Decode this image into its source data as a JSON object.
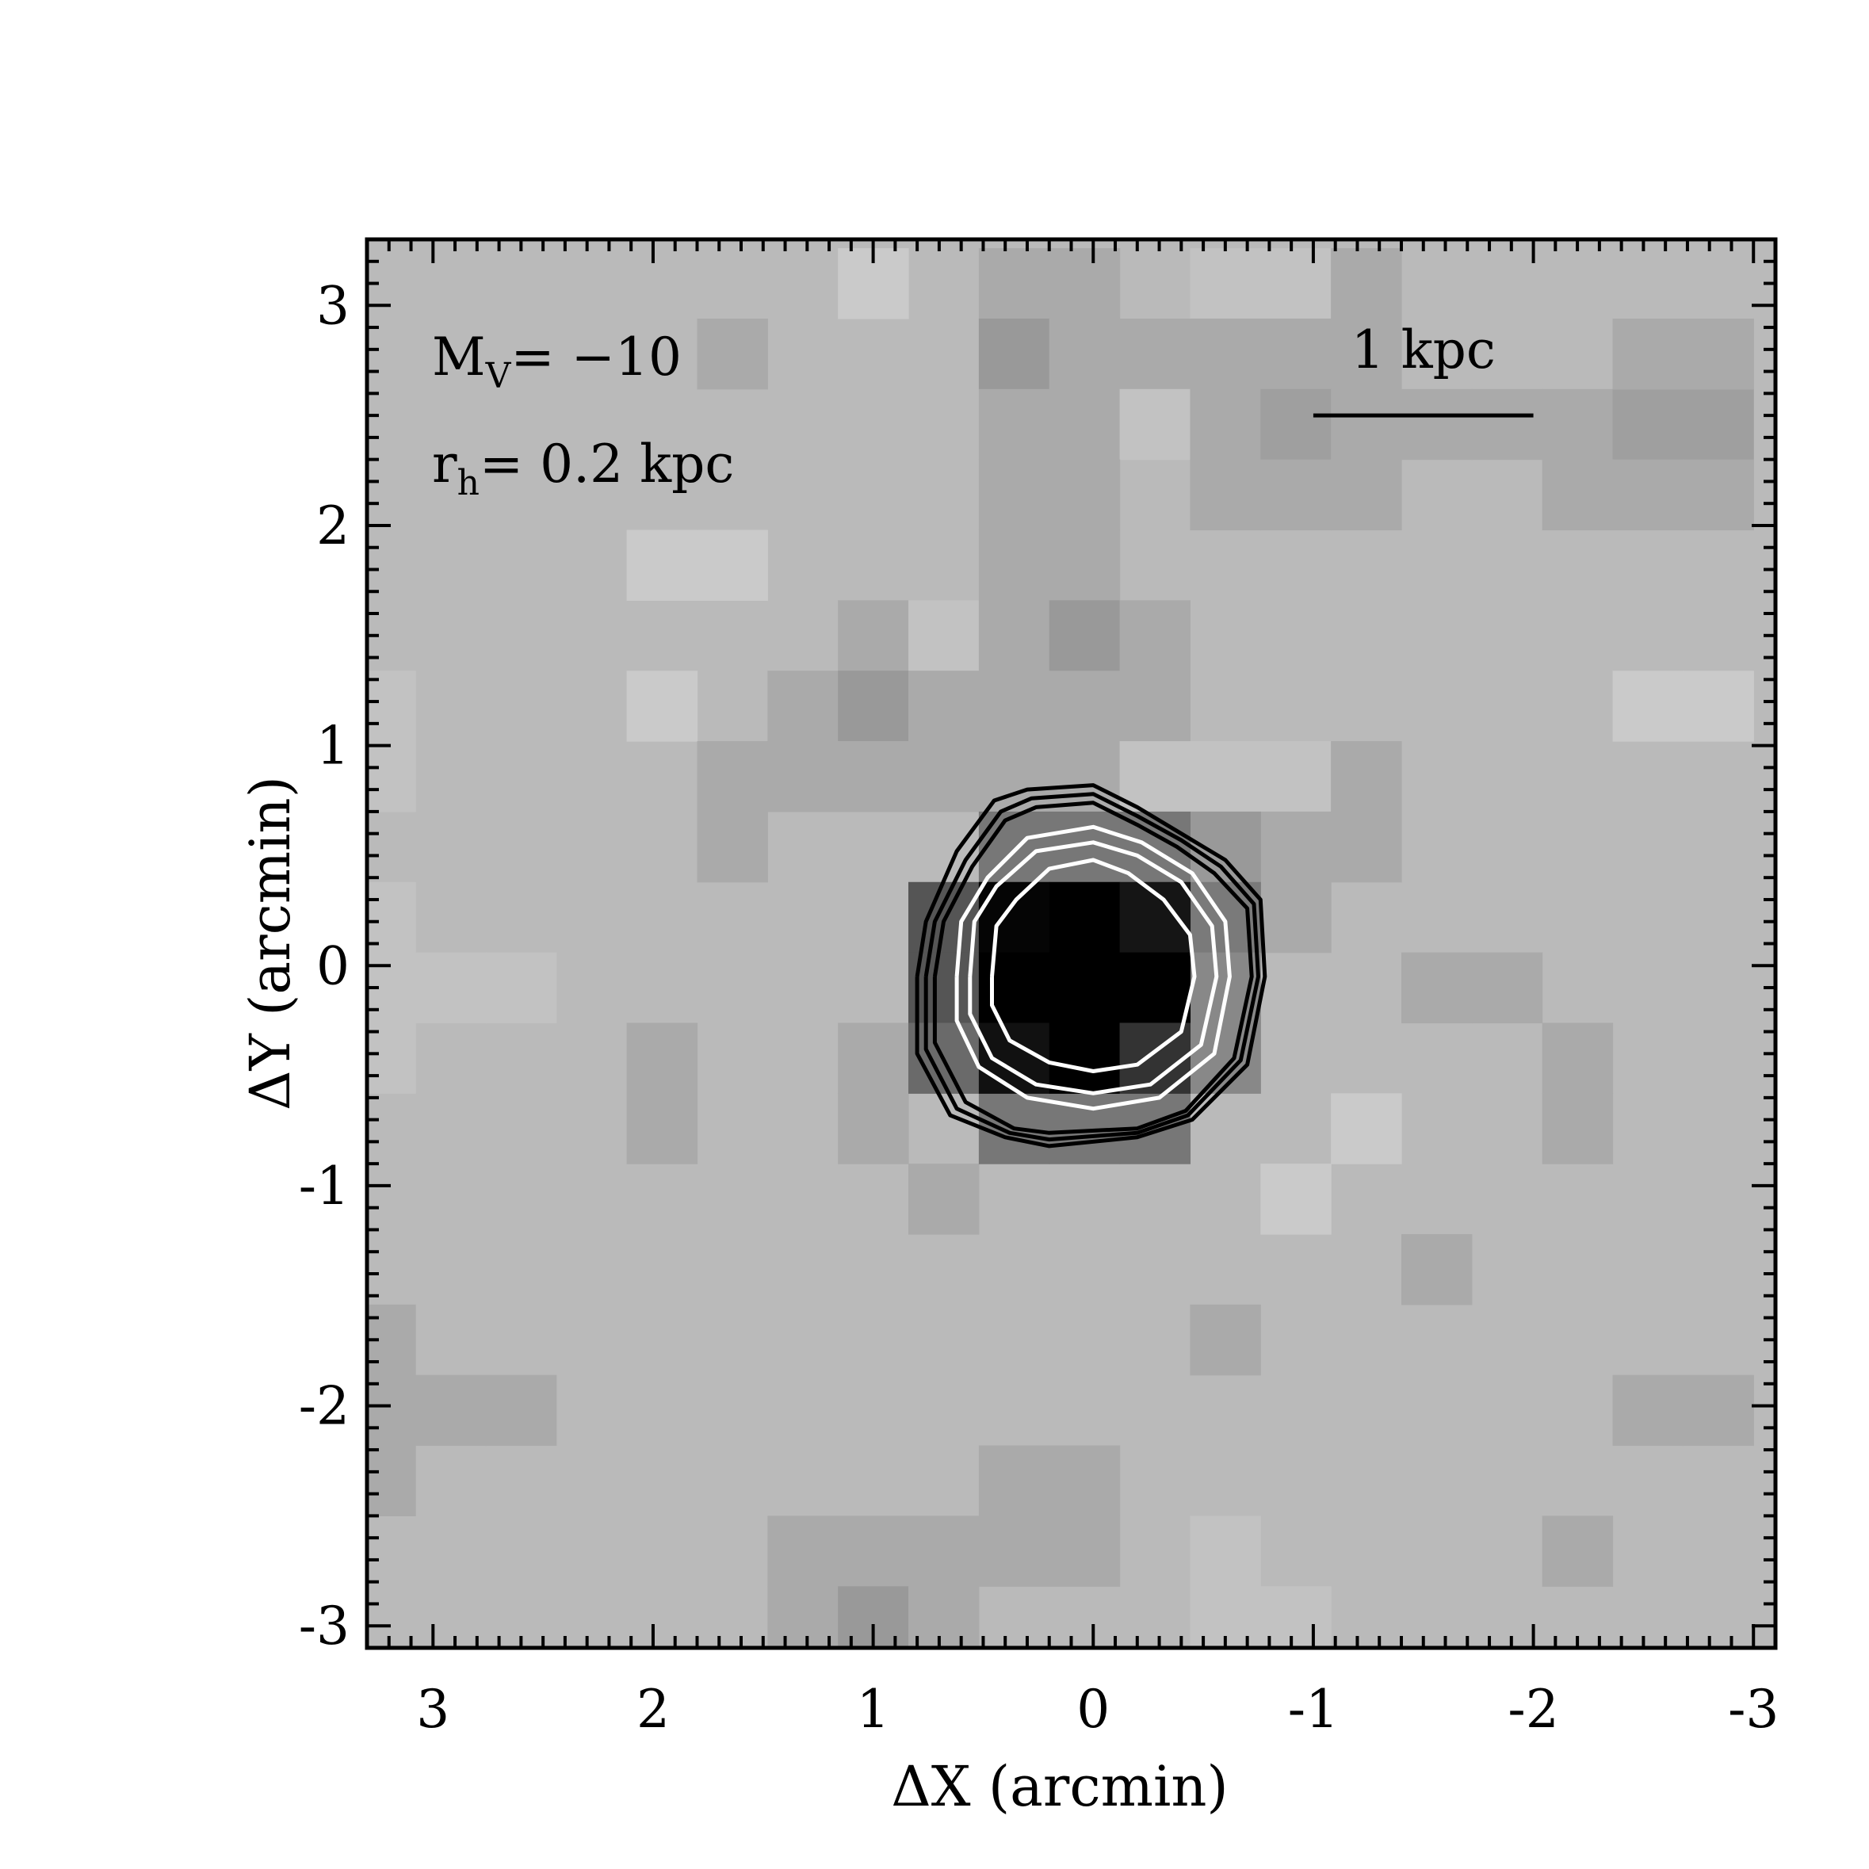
{
  "chart_data": {
    "type": "heatmap",
    "title": "",
    "xlabel": "ΔX (arcmin)",
    "ylabel": "ΔY (arcmin)",
    "xlim": [
      3.3,
      -3.1
    ],
    "ylim": [
      -3.1,
      3.3
    ],
    "x_ticks": [
      3,
      2,
      1,
      0,
      -1,
      -2,
      -3
    ],
    "y_ticks": [
      -3,
      -2,
      -1,
      0,
      1,
      2,
      3
    ],
    "x_tick_labels": [
      "3",
      "2",
      "1",
      "0",
      "-1",
      "-2",
      "-3"
    ],
    "y_tick_labels": [
      "-3",
      "-2",
      "-1",
      "0",
      "1",
      "2",
      "3"
    ],
    "grid": false,
    "background_gray": "#bababa",
    "pixel_size_arcmin": 0.32,
    "cells": [
      {
        "x": 1.0,
        "y": 3.1,
        "gray": "#cacaca"
      },
      {
        "x": 1.64,
        "y": 2.78,
        "gray": "#aaaaaa"
      },
      {
        "x": 0.36,
        "y": 3.1,
        "gray": "#aaaaaa"
      },
      {
        "x": 0.04,
        "y": 3.1,
        "gray": "#aaaaaa"
      },
      {
        "x": 0.36,
        "y": 2.78,
        "gray": "#999999"
      },
      {
        "x": 0.04,
        "y": 2.78,
        "gray": "#aaaaaa"
      },
      {
        "x": -0.28,
        "y": 2.78,
        "gray": "#aaaaaa"
      },
      {
        "x": 0.36,
        "y": 2.46,
        "gray": "#aaaaaa"
      },
      {
        "x": 0.04,
        "y": 2.46,
        "gray": "#aaaaaa"
      },
      {
        "x": -0.6,
        "y": 3.1,
        "gray": "#c2c2c2"
      },
      {
        "x": -0.92,
        "y": 3.1,
        "gray": "#c2c2c2"
      },
      {
        "x": -1.24,
        "y": 3.1,
        "gray": "#aaaaaa"
      },
      {
        "x": -0.6,
        "y": 2.78,
        "gray": "#aaaaaa"
      },
      {
        "x": -0.92,
        "y": 2.78,
        "gray": "#aaaaaa"
      },
      {
        "x": -1.24,
        "y": 2.78,
        "gray": "#aaaaaa"
      },
      {
        "x": -0.28,
        "y": 2.46,
        "gray": "#c2c2c2"
      },
      {
        "x": -0.6,
        "y": 2.46,
        "gray": "#aaaaaa"
      },
      {
        "x": -0.92,
        "y": 2.46,
        "gray": "#9f9f9f"
      },
      {
        "x": -1.24,
        "y": 2.46,
        "gray": "#aaaaaa"
      },
      {
        "x": -1.56,
        "y": 2.46,
        "gray": "#aaaaaa"
      },
      {
        "x": -1.88,
        "y": 2.46,
        "gray": "#aaaaaa"
      },
      {
        "x": -0.6,
        "y": 2.14,
        "gray": "#aaaaaa"
      },
      {
        "x": -0.92,
        "y": 2.14,
        "gray": "#aaaaaa"
      },
      {
        "x": -1.24,
        "y": 2.14,
        "gray": "#aaaaaa"
      },
      {
        "x": -2.2,
        "y": 2.46,
        "gray": "#aaaaaa"
      },
      {
        "x": -2.52,
        "y": 2.46,
        "gray": "#9f9f9f"
      },
      {
        "x": -2.84,
        "y": 2.46,
        "gray": "#9f9f9f"
      },
      {
        "x": -2.52,
        "y": 2.78,
        "gray": "#aaaaaa"
      },
      {
        "x": -2.84,
        "y": 2.78,
        "gray": "#aaaaaa"
      },
      {
        "x": -2.2,
        "y": 2.14,
        "gray": "#aaaaaa"
      },
      {
        "x": -2.52,
        "y": 2.14,
        "gray": "#aaaaaa"
      },
      {
        "x": -2.84,
        "y": 2.14,
        "gray": "#aaaaaa"
      },
      {
        "x": 0.36,
        "y": 2.14,
        "gray": "#aaaaaa"
      },
      {
        "x": 0.04,
        "y": 2.14,
        "gray": "#aaaaaa"
      },
      {
        "x": 1.96,
        "y": 1.82,
        "gray": "#cacaca"
      },
      {
        "x": 1.64,
        "y": 1.82,
        "gray": "#cacaca"
      },
      {
        "x": 0.36,
        "y": 1.82,
        "gray": "#aaaaaa"
      },
      {
        "x": 0.04,
        "y": 1.82,
        "gray": "#aaaaaa"
      },
      {
        "x": 1.0,
        "y": 1.5,
        "gray": "#aaaaaa"
      },
      {
        "x": 0.68,
        "y": 1.5,
        "gray": "#c2c2c2"
      },
      {
        "x": 0.36,
        "y": 1.5,
        "gray": "#aaaaaa"
      },
      {
        "x": 0.04,
        "y": 1.5,
        "gray": "#999999"
      },
      {
        "x": -0.28,
        "y": 1.5,
        "gray": "#aaaaaa"
      },
      {
        "x": 1.96,
        "y": 1.18,
        "gray": "#cacaca"
      },
      {
        "x": 1.32,
        "y": 1.18,
        "gray": "#aaaaaa"
      },
      {
        "x": 1.0,
        "y": 1.18,
        "gray": "#999999"
      },
      {
        "x": 0.68,
        "y": 1.18,
        "gray": "#aaaaaa"
      },
      {
        "x": 0.36,
        "y": 1.18,
        "gray": "#aaaaaa"
      },
      {
        "x": 0.04,
        "y": 1.18,
        "gray": "#aaaaaa"
      },
      {
        "x": -0.28,
        "y": 1.18,
        "gray": "#aaaaaa"
      },
      {
        "x": 3.24,
        "y": 1.18,
        "gray": "#c2c2c2"
      },
      {
        "x": 3.24,
        "y": 0.86,
        "gray": "#c2c2c2"
      },
      {
        "x": -2.52,
        "y": 1.18,
        "gray": "#cacaca"
      },
      {
        "x": -2.84,
        "y": 1.18,
        "gray": "#cacaca"
      },
      {
        "x": 1.64,
        "y": 0.86,
        "gray": "#aaaaaa"
      },
      {
        "x": 1.32,
        "y": 0.86,
        "gray": "#aaaaaa"
      },
      {
        "x": 1.0,
        "y": 0.86,
        "gray": "#aaaaaa"
      },
      {
        "x": 0.68,
        "y": 0.86,
        "gray": "#aaaaaa"
      },
      {
        "x": 0.36,
        "y": 0.86,
        "gray": "#aaaaaa"
      },
      {
        "x": 0.04,
        "y": 0.86,
        "gray": "#aaaaaa"
      },
      {
        "x": -0.28,
        "y": 0.86,
        "gray": "#c2c2c2"
      },
      {
        "x": -0.6,
        "y": 0.86,
        "gray": "#c2c2c2"
      },
      {
        "x": -0.92,
        "y": 0.86,
        "gray": "#c2c2c2"
      },
      {
        "x": -1.24,
        "y": 0.86,
        "gray": "#aaaaaa"
      },
      {
        "x": 1.64,
        "y": 0.54,
        "gray": "#aaaaaa"
      },
      {
        "x": -1.24,
        "y": 0.54,
        "gray": "#aaaaaa"
      },
      {
        "x": -0.92,
        "y": 0.54,
        "gray": "#aaaaaa"
      },
      {
        "x": -0.6,
        "y": 0.54,
        "gray": "#999999"
      },
      {
        "x": -0.92,
        "y": 0.22,
        "gray": "#aaaaaa"
      },
      {
        "x": 3.24,
        "y": 0.22,
        "gray": "#c2c2c2"
      },
      {
        "x": 3.24,
        "y": -0.1,
        "gray": "#c2c2c2"
      },
      {
        "x": 2.92,
        "y": -0.1,
        "gray": "#c2c2c2"
      },
      {
        "x": 2.6,
        "y": -0.1,
        "gray": "#c2c2c2"
      },
      {
        "x": 3.24,
        "y": -0.42,
        "gray": "#c2c2c2"
      },
      {
        "x": -1.56,
        "y": -0.1,
        "gray": "#aaaaaa"
      },
      {
        "x": -1.88,
        "y": -0.1,
        "gray": "#aaaaaa"
      },
      {
        "x": 1.96,
        "y": -0.42,
        "gray": "#aaaaaa"
      },
      {
        "x": 1.96,
        "y": -0.74,
        "gray": "#aaaaaa"
      },
      {
        "x": 1.0,
        "y": -0.42,
        "gray": "#aaaaaa"
      },
      {
        "x": 1.0,
        "y": -0.74,
        "gray": "#aaaaaa"
      },
      {
        "x": -2.2,
        "y": -0.42,
        "gray": "#aaaaaa"
      },
      {
        "x": -2.2,
        "y": -0.74,
        "gray": "#aaaaaa"
      },
      {
        "x": -1.24,
        "y": -0.74,
        "gray": "#cacaca"
      },
      {
        "x": -0.92,
        "y": -1.06,
        "gray": "#cacaca"
      },
      {
        "x": 0.68,
        "y": -1.06,
        "gray": "#aaaaaa"
      },
      {
        "x": -1.56,
        "y": -1.38,
        "gray": "#aaaaaa"
      },
      {
        "x": -0.6,
        "y": -1.7,
        "gray": "#aaaaaa"
      },
      {
        "x": 3.24,
        "y": -1.7,
        "gray": "#aaaaaa"
      },
      {
        "x": 3.24,
        "y": -2.02,
        "gray": "#aaaaaa"
      },
      {
        "x": 2.92,
        "y": -2.02,
        "gray": "#aaaaaa"
      },
      {
        "x": 2.6,
        "y": -2.02,
        "gray": "#aaaaaa"
      },
      {
        "x": 3.24,
        "y": -2.34,
        "gray": "#aaaaaa"
      },
      {
        "x": -2.52,
        "y": -2.02,
        "gray": "#aaaaaa"
      },
      {
        "x": -2.84,
        "y": -2.02,
        "gray": "#aaaaaa"
      },
      {
        "x": 0.36,
        "y": -2.34,
        "gray": "#aaaaaa"
      },
      {
        "x": 0.04,
        "y": -2.34,
        "gray": "#aaaaaa"
      },
      {
        "x": 1.32,
        "y": -2.66,
        "gray": "#aaaaaa"
      },
      {
        "x": 1.0,
        "y": -2.66,
        "gray": "#aaaaaa"
      },
      {
        "x": 0.68,
        "y": -2.66,
        "gray": "#aaaaaa"
      },
      {
        "x": 0.36,
        "y": -2.66,
        "gray": "#aaaaaa"
      },
      {
        "x": 0.04,
        "y": -2.66,
        "gray": "#aaaaaa"
      },
      {
        "x": -0.6,
        "y": -2.66,
        "gray": "#c2c2c2"
      },
      {
        "x": -2.2,
        "y": -2.66,
        "gray": "#aaaaaa"
      },
      {
        "x": 1.32,
        "y": -2.98,
        "gray": "#aaaaaa"
      },
      {
        "x": 1.0,
        "y": -2.98,
        "gray": "#999999"
      },
      {
        "x": 0.68,
        "y": -2.98,
        "gray": "#aaaaaa"
      },
      {
        "x": -0.6,
        "y": -2.98,
        "gray": "#c2c2c2"
      },
      {
        "x": -0.92,
        "y": -2.98,
        "gray": "#c2c2c2"
      },
      {
        "x": 0.68,
        "y": 0.22,
        "gray": "#555555"
      },
      {
        "x": 0.68,
        "y": -0.1,
        "gray": "#555555"
      },
      {
        "x": 0.68,
        "y": -0.42,
        "gray": "#6a6a6a"
      },
      {
        "x": 0.36,
        "y": 0.54,
        "gray": "#777777"
      },
      {
        "x": 0.04,
        "y": 0.54,
        "gray": "#777777"
      },
      {
        "x": -0.28,
        "y": 0.54,
        "gray": "#777777"
      },
      {
        "x": 0.36,
        "y": -0.74,
        "gray": "#777777"
      },
      {
        "x": 0.04,
        "y": -0.74,
        "gray": "#777777"
      },
      {
        "x": -0.28,
        "y": -0.74,
        "gray": "#777777"
      },
      {
        "x": -0.6,
        "y": 0.22,
        "gray": "#7a7a7a"
      },
      {
        "x": -0.6,
        "y": -0.1,
        "gray": "#888888"
      },
      {
        "x": -0.6,
        "y": -0.42,
        "gray": "#888888"
      },
      {
        "x": 0.36,
        "y": 0.22,
        "gray": "#050505"
      },
      {
        "x": 0.04,
        "y": 0.22,
        "gray": "#000000"
      },
      {
        "x": -0.28,
        "y": 0.22,
        "gray": "#151515"
      },
      {
        "x": 0.36,
        "y": -0.1,
        "gray": "#000000"
      },
      {
        "x": 0.04,
        "y": -0.1,
        "gray": "#000000"
      },
      {
        "x": -0.28,
        "y": -0.1,
        "gray": "#000000"
      },
      {
        "x": 0.36,
        "y": -0.42,
        "gray": "#111111"
      },
      {
        "x": 0.04,
        "y": -0.42,
        "gray": "#000000"
      },
      {
        "x": -0.28,
        "y": -0.42,
        "gray": "#333333"
      }
    ],
    "contours": [
      {
        "color": "#000000",
        "points": [
          [
            0.8,
            -0.05
          ],
          [
            0.76,
            0.2
          ],
          [
            0.62,
            0.52
          ],
          [
            0.45,
            0.75
          ],
          [
            0.3,
            0.8
          ],
          [
            0.0,
            0.82
          ],
          [
            -0.2,
            0.72
          ],
          [
            -0.4,
            0.6
          ],
          [
            -0.6,
            0.48
          ],
          [
            -0.76,
            0.3
          ],
          [
            -0.78,
            -0.05
          ],
          [
            -0.7,
            -0.45
          ],
          [
            -0.45,
            -0.7
          ],
          [
            -0.2,
            -0.78
          ],
          [
            0.2,
            -0.82
          ],
          [
            0.4,
            -0.78
          ],
          [
            0.65,
            -0.68
          ],
          [
            0.8,
            -0.4
          ],
          [
            0.8,
            -0.05
          ]
        ]
      },
      {
        "color": "#000000",
        "points": [
          [
            0.76,
            -0.05
          ],
          [
            0.72,
            0.2
          ],
          [
            0.58,
            0.48
          ],
          [
            0.42,
            0.7
          ],
          [
            0.28,
            0.76
          ],
          [
            0.0,
            0.78
          ],
          [
            -0.2,
            0.68
          ],
          [
            -0.4,
            0.57
          ],
          [
            -0.58,
            0.45
          ],
          [
            -0.73,
            0.28
          ],
          [
            -0.75,
            -0.05
          ],
          [
            -0.67,
            -0.43
          ],
          [
            -0.43,
            -0.68
          ],
          [
            -0.2,
            -0.76
          ],
          [
            0.2,
            -0.79
          ],
          [
            0.38,
            -0.76
          ],
          [
            0.62,
            -0.65
          ],
          [
            0.76,
            -0.38
          ],
          [
            0.76,
            -0.05
          ]
        ]
      },
      {
        "color": "#000000",
        "points": [
          [
            0.72,
            -0.05
          ],
          [
            0.68,
            0.2
          ],
          [
            0.55,
            0.45
          ],
          [
            0.4,
            0.66
          ],
          [
            0.26,
            0.72
          ],
          [
            0.0,
            0.74
          ],
          [
            -0.2,
            0.64
          ],
          [
            -0.38,
            0.54
          ],
          [
            -0.55,
            0.42
          ],
          [
            -0.7,
            0.26
          ],
          [
            -0.72,
            -0.05
          ],
          [
            -0.64,
            -0.42
          ],
          [
            -0.42,
            -0.66
          ],
          [
            -0.2,
            -0.74
          ],
          [
            0.2,
            -0.76
          ],
          [
            0.36,
            -0.74
          ],
          [
            0.58,
            -0.62
          ],
          [
            0.72,
            -0.35
          ],
          [
            0.72,
            -0.05
          ]
        ]
      },
      {
        "color": "#ffffff",
        "points": [
          [
            0.62,
            -0.05
          ],
          [
            0.6,
            0.2
          ],
          [
            0.48,
            0.4
          ],
          [
            0.3,
            0.58
          ],
          [
            0.0,
            0.63
          ],
          [
            -0.22,
            0.56
          ],
          [
            -0.45,
            0.42
          ],
          [
            -0.6,
            0.2
          ],
          [
            -0.62,
            -0.05
          ],
          [
            -0.55,
            -0.4
          ],
          [
            -0.3,
            -0.6
          ],
          [
            0.0,
            -0.65
          ],
          [
            0.3,
            -0.6
          ],
          [
            0.52,
            -0.46
          ],
          [
            0.62,
            -0.25
          ],
          [
            0.62,
            -0.05
          ]
        ]
      },
      {
        "color": "#ffffff",
        "points": [
          [
            0.56,
            -0.05
          ],
          [
            0.54,
            0.2
          ],
          [
            0.44,
            0.36
          ],
          [
            0.26,
            0.52
          ],
          [
            0.0,
            0.56
          ],
          [
            -0.2,
            0.5
          ],
          [
            -0.4,
            0.38
          ],
          [
            -0.54,
            0.18
          ],
          [
            -0.56,
            -0.05
          ],
          [
            -0.49,
            -0.36
          ],
          [
            -0.26,
            -0.54
          ],
          [
            0.0,
            -0.58
          ],
          [
            0.26,
            -0.54
          ],
          [
            0.46,
            -0.42
          ],
          [
            0.56,
            -0.22
          ],
          [
            0.56,
            -0.05
          ]
        ]
      },
      {
        "color": "#ffffff",
        "points": [
          [
            0.46,
            -0.05
          ],
          [
            0.44,
            0.18
          ],
          [
            0.35,
            0.3
          ],
          [
            0.2,
            0.44
          ],
          [
            0.0,
            0.48
          ],
          [
            -0.16,
            0.42
          ],
          [
            -0.32,
            0.3
          ],
          [
            -0.44,
            0.14
          ],
          [
            -0.46,
            -0.05
          ],
          [
            -0.4,
            -0.3
          ],
          [
            -0.2,
            -0.45
          ],
          [
            0.0,
            -0.48
          ],
          [
            0.2,
            -0.44
          ],
          [
            0.38,
            -0.34
          ],
          [
            0.46,
            -0.18
          ],
          [
            0.46,
            -0.05
          ]
        ]
      }
    ],
    "scale_bar": {
      "label": "1 kpc",
      "x_start": -1.0,
      "x_end": -2.0,
      "y": 2.5
    },
    "annotations": [
      {
        "main": "M",
        "sub": "V",
        "rest": "= −10"
      },
      {
        "main": "r",
        "sub": "h",
        "rest": "= 0.2 kpc"
      }
    ]
  }
}
